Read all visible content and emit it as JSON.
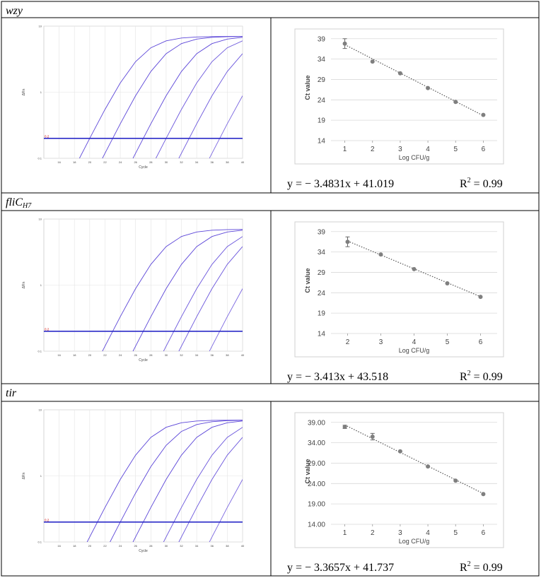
{
  "rows": [
    {
      "label": "wzy"
    },
    {
      "label": "fliC",
      "subscript": "H7"
    },
    {
      "label": "tir"
    }
  ],
  "chart_data": [
    {
      "type": "amplification",
      "y_label": "ΔRn",
      "x_label": "Cycle",
      "log_y": true,
      "grid": true,
      "xlim": [
        14,
        40
      ],
      "xticks": [
        16,
        18,
        20,
        22,
        24,
        26,
        28,
        30,
        32,
        34,
        36,
        38,
        40
      ],
      "ylim": [
        0.1,
        10
      ],
      "yticks": [
        0.1,
        1,
        10
      ],
      "threshold": 0.2,
      "threshold_color": "#2b2bc8",
      "x": [
        14,
        16,
        18,
        20,
        22,
        24,
        26,
        28,
        30,
        32,
        34,
        36,
        38,
        40
      ],
      "series": [
        {
          "color": "#5b45d8",
          "values": [
            null,
            null,
            0.071,
            0.2,
            0.549,
            1.38,
            2.9,
            4.71,
            5.99,
            6.61,
            6.86,
            6.95,
            6.98,
            6.99
          ]
        },
        {
          "color": "#5b45d8",
          "values": [
            null,
            null,
            null,
            0.042,
            0.119,
            0.333,
            0.884,
            2.06,
            3.83,
            5.44,
            6.37,
            6.77,
            6.92,
            6.97
          ]
        },
        {
          "color": "#5b45d8",
          "values": [
            null,
            null,
            null,
            null,
            null,
            0.042,
            0.119,
            0.333,
            0.884,
            2.06,
            3.83,
            5.44,
            6.37,
            6.77
          ]
        },
        {
          "color": "#6a55dc",
          "values": [
            null,
            null,
            null,
            null,
            null,
            null,
            null,
            0.071,
            0.2,
            0.549,
            1.38,
            2.9,
            4.71,
            5.99
          ]
        },
        {
          "color": "#6a55dc",
          "values": [
            null,
            null,
            null,
            null,
            null,
            null,
            null,
            null,
            0.042,
            0.119,
            0.333,
            0.884,
            2.06,
            3.83
          ]
        },
        {
          "color": "#7a66e0",
          "values": [
            null,
            null,
            null,
            null,
            null,
            null,
            null,
            null,
            null,
            null,
            0.042,
            0.119,
            0.333,
            0.884
          ]
        }
      ]
    },
    {
      "type": "scatter",
      "y_label": "Ct value",
      "x_label": "Log CFU/g",
      "grid": true,
      "color": "#7f7f7f",
      "xlim": [
        0.5,
        6.5
      ],
      "xticks": [
        1,
        2,
        3,
        4,
        5,
        6
      ],
      "ylim": [
        14,
        40
      ],
      "yticks": [
        14,
        19,
        24,
        29,
        34,
        39
      ],
      "x": [
        1,
        2,
        3,
        4,
        5,
        6
      ],
      "values": [
        37.8,
        33.4,
        30.5,
        26.9,
        23.5,
        20.3
      ],
      "errors": [
        1.2,
        null,
        null,
        null,
        null,
        null
      ],
      "trendline": {
        "slope": -3.4831,
        "intercept": 41.019
      },
      "equation": "y = − 3.4831x + 41.019",
      "r2_symbol": "R",
      "r2_power": "2",
      "r2_text": " = 0.99"
    },
    {
      "type": "amplification",
      "y_label": "ΔRn",
      "x_label": "Cycle",
      "log_y": true,
      "grid": true,
      "xlim": [
        14,
        40
      ],
      "xticks": [
        16,
        18,
        20,
        22,
        24,
        26,
        28,
        30,
        32,
        34,
        36,
        38,
        40
      ],
      "ylim": [
        0.1,
        10
      ],
      "yticks": [
        0.1,
        1,
        10
      ],
      "threshold": 0.2,
      "threshold_color": "#2b2bc8",
      "x": [
        14,
        16,
        18,
        20,
        22,
        24,
        26,
        28,
        30,
        32,
        34,
        36,
        38,
        40
      ],
      "series": [
        {
          "color": "#5b45d8",
          "values": [
            null,
            null,
            null,
            0.042,
            0.119,
            0.333,
            0.884,
            2.06,
            3.83,
            5.44,
            6.37,
            6.77,
            6.92,
            6.97
          ]
        },
        {
          "color": "#5b45d8",
          "values": [
            null,
            null,
            null,
            null,
            null,
            0.042,
            0.119,
            0.333,
            0.884,
            2.06,
            3.83,
            5.44,
            6.37,
            6.77
          ]
        },
        {
          "color": "#6a55dc",
          "values": [
            null,
            null,
            null,
            null,
            null,
            null,
            null,
            0.042,
            0.119,
            0.333,
            0.884,
            2.06,
            3.83,
            5.44
          ]
        },
        {
          "color": "#6a55dc",
          "values": [
            null,
            null,
            null,
            null,
            null,
            null,
            null,
            null,
            0.042,
            0.119,
            0.333,
            0.884,
            2.06,
            3.83
          ]
        },
        {
          "color": "#7a66e0",
          "values": [
            null,
            null,
            null,
            null,
            null,
            null,
            null,
            null,
            null,
            null,
            0.042,
            0.119,
            0.333,
            0.884
          ]
        }
      ]
    },
    {
      "type": "scatter",
      "y_label": "Ct value",
      "x_label": "Log CFU/g",
      "grid": true,
      "color": "#7f7f7f",
      "xlim": [
        1.5,
        6.5
      ],
      "xticks": [
        2,
        3,
        4,
        5,
        6
      ],
      "ylim": [
        14,
        40
      ],
      "yticks": [
        14,
        19,
        24,
        29,
        34,
        39
      ],
      "x": [
        2,
        3,
        4,
        5,
        6
      ],
      "values": [
        36.5,
        33.4,
        29.8,
        26.3,
        23.0
      ],
      "errors": [
        1.2,
        null,
        null,
        null,
        null
      ],
      "trendline": {
        "slope": -3.413,
        "intercept": 43.518
      },
      "equation": "y = − 3.413x + 43.518",
      "r2_symbol": "R",
      "r2_power": "2",
      "r2_text": " = 0.99"
    },
    {
      "type": "amplification",
      "y_label": "ΔRn",
      "x_label": "Cycle",
      "log_y": true,
      "grid": true,
      "xlim": [
        14,
        40
      ],
      "xticks": [
        16,
        18,
        20,
        22,
        24,
        26,
        28,
        30,
        32,
        34,
        36,
        38,
        40
      ],
      "ylim": [
        0.1,
        10
      ],
      "yticks": [
        0.1,
        1,
        10
      ],
      "threshold": 0.2,
      "threshold_color": "#2b2bc8",
      "x": [
        14,
        16,
        18,
        20,
        22,
        24,
        26,
        28,
        30,
        32,
        34,
        36,
        38,
        40
      ],
      "series": [
        {
          "color": "#5b45d8",
          "values": [
            null,
            null,
            0.042,
            0.119,
            0.333,
            0.884,
            2.06,
            3.83,
            5.44,
            6.37,
            6.77,
            6.92,
            6.97,
            6.99
          ]
        },
        {
          "color": "#5b45d8",
          "values": [
            null,
            null,
            null,
            null,
            0.071,
            0.2,
            0.549,
            1.38,
            2.9,
            4.71,
            5.99,
            6.61,
            6.86,
            6.95
          ]
        },
        {
          "color": "#5b45d8",
          "values": [
            null,
            null,
            null,
            null,
            null,
            0.042,
            0.119,
            0.333,
            0.884,
            2.06,
            3.83,
            5.44,
            6.37,
            6.77
          ]
        },
        {
          "color": "#6a55dc",
          "values": [
            null,
            null,
            null,
            null,
            null,
            null,
            null,
            0.042,
            0.119,
            0.333,
            0.884,
            2.06,
            3.83,
            5.44
          ]
        },
        {
          "color": "#6a55dc",
          "values": [
            null,
            null,
            null,
            null,
            null,
            null,
            null,
            null,
            0.042,
            0.119,
            0.333,
            0.884,
            2.06,
            3.83
          ]
        },
        {
          "color": "#7a66e0",
          "values": [
            null,
            null,
            null,
            null,
            null,
            null,
            null,
            null,
            null,
            null,
            0.042,
            0.119,
            0.333,
            0.884
          ]
        }
      ]
    },
    {
      "type": "scatter",
      "y_label": "Ct value",
      "x_label": "Log CFU/g",
      "grid": true,
      "color": "#7f7f7f",
      "xlim": [
        0.5,
        6.5
      ],
      "xticks": [
        1,
        2,
        3,
        4,
        5,
        6
      ],
      "ylim": [
        14,
        40
      ],
      "yticks": [
        {
          "value": 14,
          "label": "14.00"
        },
        {
          "value": 19,
          "label": "19.00"
        },
        {
          "value": 24,
          "label": "24.00"
        },
        {
          "value": 29,
          "label": "29.00"
        },
        {
          "value": 34,
          "label": "34.00"
        },
        {
          "value": 39,
          "label": "39.00"
        }
      ],
      "x": [
        1,
        2,
        3,
        4,
        5,
        6
      ],
      "values": [
        37.9,
        35.5,
        31.9,
        28.2,
        24.7,
        21.4
      ],
      "errors": [
        0.4,
        0.8,
        null,
        null,
        null,
        null
      ],
      "trendline": {
        "slope": -3.3657,
        "intercept": 41.737
      },
      "equation": "y = − 3.3657x + 41.737",
      "r2_symbol": "R",
      "r2_power": "2",
      "r2_text": " = 0.99"
    }
  ]
}
